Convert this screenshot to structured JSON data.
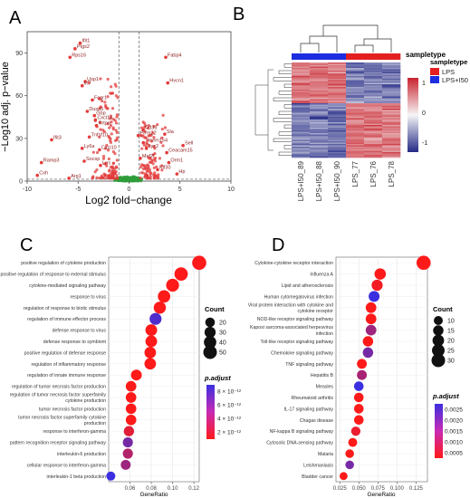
{
  "panels": {
    "a": "A",
    "b": "B",
    "c": "C",
    "d": "D"
  },
  "chart_data": [
    {
      "type": "scatter",
      "panel": "A",
      "xlabel": "Log2 fold−change",
      "ylabel": "−Log10 adj. p−value",
      "xlim": [
        -10,
        10
      ],
      "ylim": [
        0,
        105
      ],
      "xticks": [
        "-10",
        "-5",
        "0",
        "5",
        "10"
      ],
      "yticks": [
        "0",
        "30",
        "60",
        "90"
      ],
      "colors": {
        "significant": "#e23b3b",
        "not_significant": "#2e9e3a"
      },
      "labels": [
        {
          "text": "Ifit1",
          "x": -4.8,
          "y": 97
        },
        {
          "text": "Ptgs2",
          "x": -5.3,
          "y": 93
        },
        {
          "text": "Rps16",
          "x": -5.8,
          "y": 87
        },
        {
          "text": "Fabp4",
          "x": 3.6,
          "y": 87
        },
        {
          "text": "Usp1",
          "x": -4.3,
          "y": 70
        },
        {
          "text": "Irf7",
          "x": -4.6,
          "y": 67
        },
        {
          "text": "Hvcn1",
          "x": 3.8,
          "y": 69
        },
        {
          "text": "Fcgr1",
          "x": -3.6,
          "y": 57
        },
        {
          "text": "Dusp5",
          "x": -4.1,
          "y": 49
        },
        {
          "text": "Gbp",
          "x": -3.4,
          "y": 46
        },
        {
          "text": "Cxcl1a",
          "x": -3.3,
          "y": 43
        },
        {
          "text": "Rrtpn",
          "x": -3.2,
          "y": 39
        },
        {
          "text": "Cd33",
          "x": 1.4,
          "y": 36
        },
        {
          "text": "Ifit3",
          "x": -7.6,
          "y": 29
        },
        {
          "text": "Tnfsf10",
          "x": -3.9,
          "y": 31
        },
        {
          "text": "Prrm22",
          "x": 0.9,
          "y": 32
        },
        {
          "text": "Sla",
          "x": 3.5,
          "y": 33
        },
        {
          "text": "Tmem154",
          "x": 1.4,
          "y": 27
        },
        {
          "text": "Ly6a",
          "x": -4.6,
          "y": 23
        },
        {
          "text": "Lyz2",
          "x": 1.7,
          "y": 23
        },
        {
          "text": "Sell",
          "x": 5.3,
          "y": 25
        },
        {
          "text": "Ceacam15",
          "x": 3.7,
          "y": 20
        },
        {
          "text": "Cxcl10",
          "x": -2.9,
          "y": 22
        },
        {
          "text": "Mef2l",
          "x": 1.1,
          "y": 16
        },
        {
          "text": "Ramp3",
          "x": -8.6,
          "y": 13
        },
        {
          "text": "Socsp",
          "x": -4.4,
          "y": 14
        },
        {
          "text": "Orm1",
          "x": 3.9,
          "y": 13
        },
        {
          "text": "Lrrc",
          "x": -2.8,
          "y": 11
        },
        {
          "text": "Klf30",
          "x": 2.8,
          "y": 8
        },
        {
          "text": "Cxh",
          "x": -9.0,
          "y": 4
        },
        {
          "text": "Arg1",
          "x": -5.9,
          "y": 2
        },
        {
          "text": "Hp",
          "x": 4.7,
          "y": 5
        }
      ]
    },
    {
      "type": "heatmap",
      "panel": "B",
      "columns": [
        "LPS+I50_89",
        "LPS+I50_88",
        "LPS+I50_90",
        "LPS_77",
        "LPS_76",
        "LPS_78"
      ],
      "groups": [
        "LPS+I50",
        "LPS+I50",
        "LPS+I50",
        "LPS",
        "LPS",
        "LPS"
      ],
      "annotation_title": "sampletype",
      "legend_title": "sampletype",
      "legend_items": [
        {
          "label": "LPS",
          "color": "#e32020"
        },
        {
          "label": "LPS+I50",
          "color": "#1c2ee0"
        }
      ],
      "scale_ticks": [
        "1",
        "0",
        "-1"
      ],
      "colors": {
        "high": "#c9232e",
        "mid": "#f5f5f5",
        "low": "#242a86"
      }
    },
    {
      "type": "scatter",
      "panel": "C",
      "xlabel": "GeneRatio",
      "xlim": [
        0.04,
        0.125
      ],
      "xticks": [
        0.06,
        0.08,
        0.1,
        0.12
      ],
      "xtick_labels": [
        "0.06",
        "0.08",
        "0.10",
        "0.12"
      ],
      "size_legend_title": "Count",
      "size_legend": [
        20,
        30,
        40,
        50
      ],
      "color_legend_title": "p.adjust",
      "color_legend_ticks": [
        "8 × 10⁻¹²",
        "6 × 10⁻¹²",
        "4 × 10⁻¹²",
        "2 × 10⁻¹²"
      ],
      "points": [
        {
          "term": "positive regulation of cytokine production",
          "ratio": 0.125,
          "count": 55,
          "padj": 0.0
        },
        {
          "term": "positive regulation of response to external stimulus",
          "ratio": 0.108,
          "count": 48,
          "padj": 0.0
        },
        {
          "term": "cytokine-mediated signaling pathway",
          "ratio": 0.1,
          "count": 44,
          "padj": 0.0
        },
        {
          "term": "response to virus",
          "ratio": 0.092,
          "count": 40,
          "padj": 0.0
        },
        {
          "term": "regulation of response to biotic stimulus",
          "ratio": 0.088,
          "count": 38,
          "padj": 0.0
        },
        {
          "term": "regulation of immune effector process",
          "ratio": 0.084,
          "count": 36,
          "padj": 0.9
        },
        {
          "term": "defense response to virus",
          "ratio": 0.08,
          "count": 34,
          "padj": 0.0
        },
        {
          "term": "defense response to symbiont",
          "ratio": 0.08,
          "count": 34,
          "padj": 0.0
        },
        {
          "term": "positive regulation of defense response",
          "ratio": 0.079,
          "count": 33,
          "padj": 0.0
        },
        {
          "term": "regulation of inflammatory response",
          "ratio": 0.079,
          "count": 33,
          "padj": 0.0
        },
        {
          "term": "regulation of innate immune response",
          "ratio": 0.066,
          "count": 28,
          "padj": 0.0
        },
        {
          "term": "regulation of tumor necrosis factor production",
          "ratio": 0.061,
          "count": 26,
          "padj": 0.0
        },
        {
          "term": "regulation of tumor necrosis factor superfamily cytokine production",
          "ratio": 0.061,
          "count": 26,
          "padj": 0.0
        },
        {
          "term": "tumor necrosis factor production",
          "ratio": 0.061,
          "count": 26,
          "padj": 0.0
        },
        {
          "term": "tumor necrosis factor superfamily cytokine production",
          "ratio": 0.061,
          "count": 26,
          "padj": 0.0
        },
        {
          "term": "response to interferon-gamma",
          "ratio": 0.059,
          "count": 24,
          "padj": 0.15
        },
        {
          "term": "pattern recognition receptor signaling pathway",
          "ratio": 0.058,
          "count": 23,
          "padj": 0.7
        },
        {
          "term": "interleukin-6 production",
          "ratio": 0.058,
          "count": 23,
          "padj": 0.4
        },
        {
          "term": "cellular response to interferon-gamma",
          "ratio": 0.056,
          "count": 22,
          "padj": 0.5
        },
        {
          "term": "interleukin-1 beta production",
          "ratio": 0.042,
          "count": 17,
          "padj": 1.0
        }
      ]
    },
    {
      "type": "scatter",
      "panel": "D",
      "xlabel": "GeneRatio",
      "xlim": [
        0.02,
        0.14
      ],
      "xticks": [
        0.025,
        0.05,
        0.075,
        0.1,
        0.125
      ],
      "xtick_labels": [
        "0.025",
        "0.050",
        "0.075",
        "0.100",
        "0.125"
      ],
      "size_legend_title": "Count",
      "size_legend": [
        10,
        15,
        20,
        25,
        30
      ],
      "color_legend_title": "p.adjust",
      "color_legend_ticks": [
        "0.0025",
        "0.0020",
        "0.0015",
        "0.0010",
        "0.0005"
      ],
      "points": [
        {
          "term": "Cytokine-cytokine receptor interaction",
          "ratio": 0.135,
          "count": 33,
          "padj": 0.0
        },
        {
          "term": "Influenza A",
          "ratio": 0.078,
          "count": 19,
          "padj": 0.0
        },
        {
          "term": "Lipid and atherosclerosis",
          "ratio": 0.074,
          "count": 18,
          "padj": 0.05
        },
        {
          "term": "Human cytomegalovirus infection",
          "ratio": 0.07,
          "count": 17,
          "padj": 1.0
        },
        {
          "term": "Viral protein interaction with cytokine and cytokine receptor",
          "ratio": 0.066,
          "count": 16,
          "padj": 0.0
        },
        {
          "term": "NOD-like receptor signaling pathway",
          "ratio": 0.066,
          "count": 16,
          "padj": 0.0
        },
        {
          "term": "Kaposi sarcoma-associated herpesvirus infection",
          "ratio": 0.066,
          "count": 16,
          "padj": 0.5
        },
        {
          "term": "Toll-like receptor signaling pathway",
          "ratio": 0.062,
          "count": 15,
          "padj": 0.0
        },
        {
          "term": "Chemokine signaling pathway",
          "ratio": 0.062,
          "count": 15,
          "padj": 0.7
        },
        {
          "term": "TNF signaling pathway",
          "ratio": 0.054,
          "count": 13,
          "padj": 0.0
        },
        {
          "term": "Hepatitis B",
          "ratio": 0.054,
          "count": 13,
          "padj": 0.45
        },
        {
          "term": "Measles",
          "ratio": 0.05,
          "count": 12,
          "padj": 1.0
        },
        {
          "term": "Rheumatoid arthritis",
          "ratio": 0.05,
          "count": 12,
          "padj": 0.0
        },
        {
          "term": "IL-17 signaling pathway",
          "ratio": 0.05,
          "count": 12,
          "padj": 0.0
        },
        {
          "term": "Chagas disease",
          "ratio": 0.05,
          "count": 12,
          "padj": 0.0
        },
        {
          "term": "NF-kappa B signaling pathway",
          "ratio": 0.046,
          "count": 11,
          "padj": 0.1
        },
        {
          "term": "Cytosolic DNA-sensing pathway",
          "ratio": 0.042,
          "count": 10,
          "padj": 0.0
        },
        {
          "term": "Malaria",
          "ratio": 0.038,
          "count": 9,
          "padj": 0.0
        },
        {
          "term": "Leishmaniasis",
          "ratio": 0.038,
          "count": 9,
          "padj": 0.7
        },
        {
          "term": "Bladder cancer",
          "ratio": 0.03,
          "count": 7,
          "padj": 0.0
        }
      ]
    }
  ]
}
